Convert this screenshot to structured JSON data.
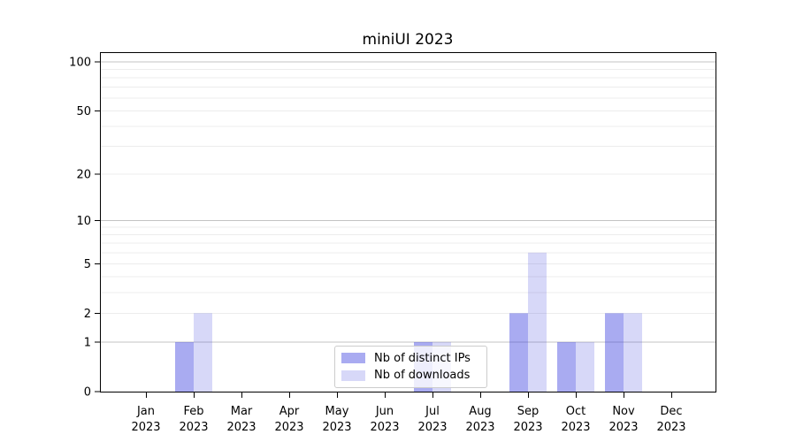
{
  "chart_data": {
    "type": "bar",
    "title": "miniUI 2023",
    "x": {
      "months": [
        "Jan",
        "Feb",
        "Mar",
        "Apr",
        "May",
        "Jun",
        "Jul",
        "Aug",
        "Sep",
        "Oct",
        "Nov",
        "Dec"
      ],
      "year": "2023"
    },
    "series": [
      {
        "name": "Nb of distinct IPs",
        "color": "rgba(67,72,224,0.46)",
        "values": [
          0,
          1,
          0,
          0,
          0,
          0,
          1,
          0,
          2,
          1,
          2,
          0
        ]
      },
      {
        "name": "Nb of downloads",
        "color": "rgba(67,72,224,0.21)",
        "values": [
          0,
          2,
          0,
          0,
          0,
          0,
          1,
          0,
          6,
          1,
          2,
          0
        ]
      }
    ],
    "y_axis": {
      "scale": "log1p",
      "ymin": 0,
      "ymax": 115,
      "labeled_ticks": [
        0,
        1,
        2,
        5,
        10,
        20,
        50,
        100
      ],
      "major_gridlines": [
        1,
        10,
        100
      ],
      "minor_gridlines": [
        2,
        3,
        4,
        5,
        6,
        7,
        8,
        9,
        20,
        30,
        40,
        50,
        60,
        70,
        80,
        90
      ]
    },
    "legend": {
      "position": "lower center"
    },
    "colors": {
      "grid_major": "#c3c3c3",
      "grid_minor": "#ececec",
      "axis": "#000000",
      "text": "#000000",
      "legend_border": "#cccccc",
      "background": "#ffffff"
    }
  }
}
